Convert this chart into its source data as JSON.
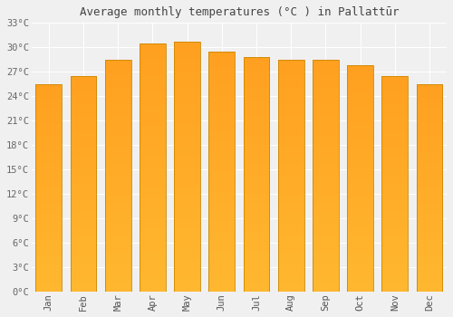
{
  "title": "Average monthly temperatures (°C ) in Pallattūr",
  "months": [
    "Jan",
    "Feb",
    "Mar",
    "Apr",
    "May",
    "Jun",
    "Jul",
    "Aug",
    "Sep",
    "Oct",
    "Nov",
    "Dec"
  ],
  "temperatures": [
    25.5,
    26.5,
    28.5,
    30.5,
    30.7,
    29.5,
    28.8,
    28.5,
    28.5,
    27.8,
    26.5,
    25.5
  ],
  "ylim": [
    0,
    33
  ],
  "yticks": [
    0,
    3,
    6,
    9,
    12,
    15,
    18,
    21,
    24,
    27,
    30,
    33
  ],
  "background_color": "#f0f0f0",
  "grid_color": "#ffffff",
  "title_fontsize": 9,
  "tick_fontsize": 7.5,
  "bar_color_bottom": "#FFB830",
  "bar_color_top": "#FFA020",
  "bar_edge_color": "#CC8800",
  "bar_width": 0.75
}
